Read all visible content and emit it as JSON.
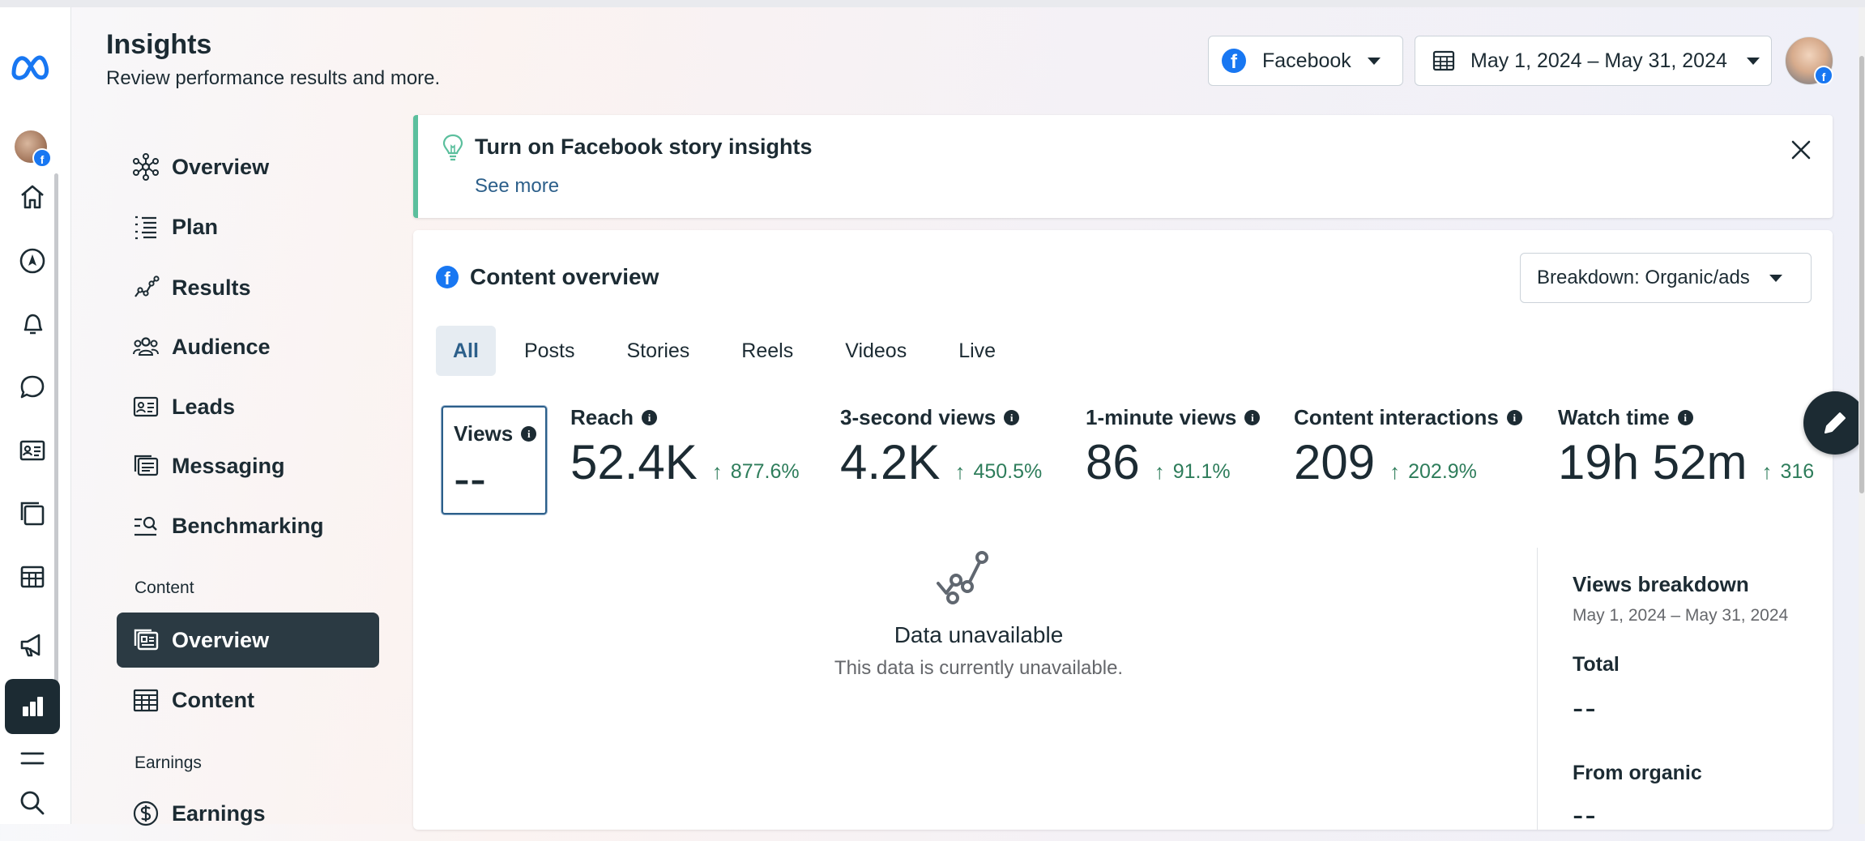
{
  "header": {
    "title": "Insights",
    "subtitle": "Review performance results and more.",
    "platform_label": "Facebook",
    "date_range": "May 1, 2024 – May 31, 2024"
  },
  "rail": {
    "icons": [
      "meta-logo-icon",
      "profile-avatar",
      "home-icon",
      "explore-icon",
      "notifications-icon",
      "messages-icon",
      "contacts-icon",
      "pages-icon",
      "table-icon",
      "ads-icon",
      "insights-icon",
      "menu-icon",
      "search-icon"
    ]
  },
  "nav": {
    "items": [
      {
        "label": "Overview",
        "icon": "overview-icon"
      },
      {
        "label": "Plan",
        "icon": "plan-icon"
      },
      {
        "label": "Results",
        "icon": "results-icon"
      },
      {
        "label": "Audience",
        "icon": "audience-icon"
      },
      {
        "label": "Leads",
        "icon": "leads-icon"
      },
      {
        "label": "Messaging",
        "icon": "messaging-icon"
      },
      {
        "label": "Benchmarking",
        "icon": "benchmarking-icon"
      }
    ],
    "section_content": "Content",
    "content_items": [
      {
        "label": "Overview",
        "icon": "content-overview-icon",
        "active": true
      },
      {
        "label": "Content",
        "icon": "content-table-icon"
      }
    ],
    "section_earnings": "Earnings",
    "earnings_items": [
      {
        "label": "Earnings",
        "icon": "dollar-icon"
      }
    ]
  },
  "banner": {
    "title": "Turn on Facebook story insights",
    "link": "See more"
  },
  "content_overview": {
    "title": "Content overview",
    "breakdown": "Breakdown: Organic/ads",
    "tabs": [
      "All",
      "Posts",
      "Stories",
      "Reels",
      "Videos",
      "Live"
    ],
    "active_tab": "All",
    "metrics": [
      {
        "label": "Views",
        "value": "--",
        "change": ""
      },
      {
        "label": "Reach",
        "value": "52.4K",
        "change": "877.6%"
      },
      {
        "label": "3-second views",
        "value": "4.2K",
        "change": "450.5%"
      },
      {
        "label": "1-minute views",
        "value": "86",
        "change": "91.1%"
      },
      {
        "label": "Content interactions",
        "value": "209",
        "change": "202.9%"
      },
      {
        "label": "Watch time",
        "value": "19h 52m",
        "change": "316"
      }
    ],
    "empty_title": "Data unavailable",
    "empty_subtitle": "This data is currently unavailable.",
    "views_breakdown": {
      "title": "Views breakdown",
      "date": "May 1, 2024 – May 31, 2024",
      "total_label": "Total",
      "total_value": "--",
      "organic_label": "From organic",
      "organic_value": "--"
    }
  },
  "colors": {
    "dark": "#1c2b33",
    "facebook_blue": "#1877f2",
    "positive_green": "#2e7d5b",
    "banner_accent": "#5bbf9d"
  }
}
